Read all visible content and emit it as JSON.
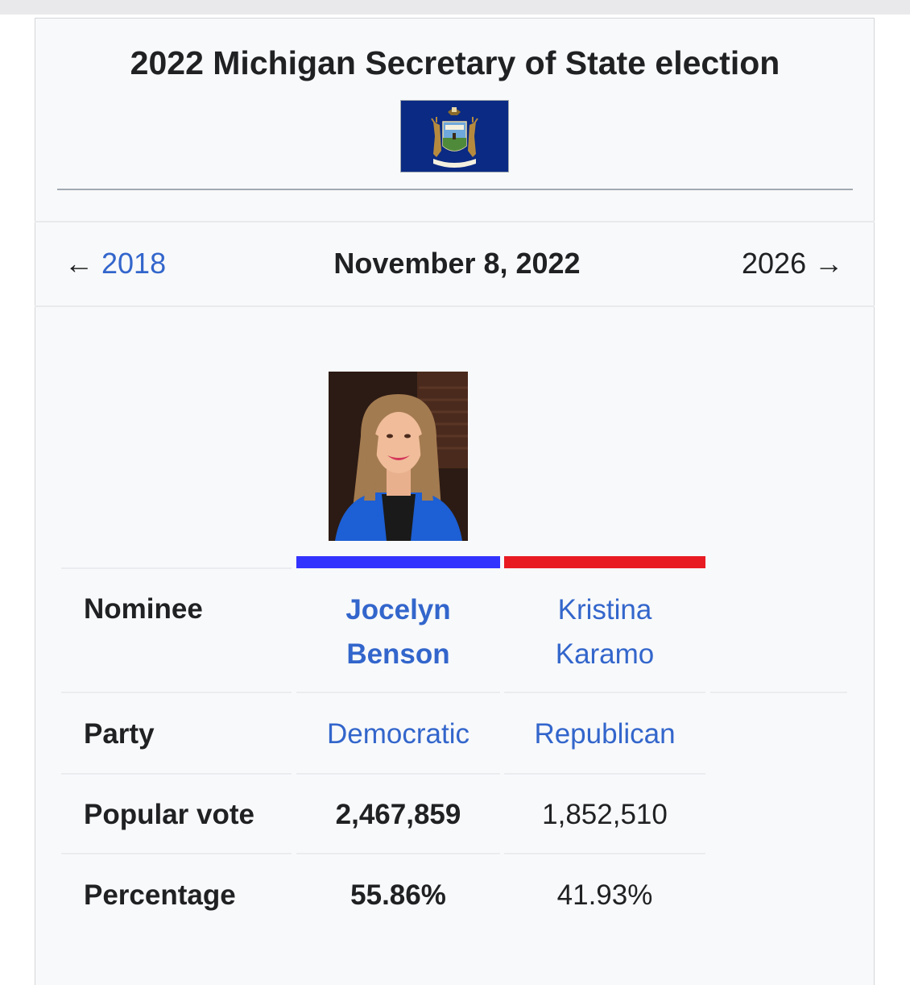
{
  "title": "2022 Michigan Secretary of State election",
  "flag": {
    "icon": "michigan-flag-icon",
    "motto": "TUEBOR"
  },
  "nav": {
    "prev_year": "2018",
    "date": "November 8, 2022",
    "next_year": "2026"
  },
  "table": {
    "labels": {
      "nominee": "Nominee",
      "party": "Party",
      "popular_vote": "Popular vote",
      "percentage": "Percentage"
    },
    "candidates": [
      {
        "first_name": "Jocelyn",
        "last_name": "Benson",
        "party": "Democratic",
        "popular_vote": "2,467,859",
        "percentage": "55.86%",
        "color": "#3333ff"
      },
      {
        "first_name": "Kristina",
        "last_name": "Karamo",
        "party": "Republican",
        "popular_vote": "1,852,510",
        "percentage": "41.93%",
        "color": "#e81b23"
      }
    ]
  },
  "colors": {
    "link": "#3366cc",
    "background": "#f8f9fa"
  }
}
